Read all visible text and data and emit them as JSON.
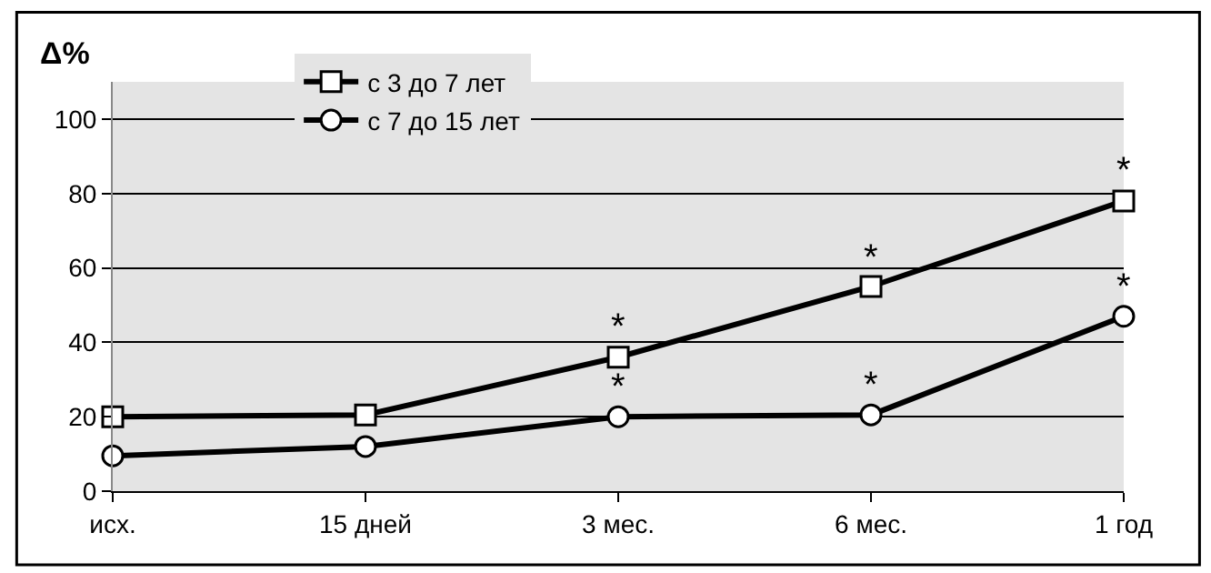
{
  "chart_data": {
    "type": "line",
    "ylabel": "Δ%",
    "categories": [
      "исх.",
      "15 дней",
      "3 мес.",
      "6 мес.",
      "1 год"
    ],
    "series": [
      {
        "name": "с 3 до 7 лет",
        "color": "#000000",
        "marker": "square",
        "values": [
          20,
          20.5,
          36,
          55,
          78
        ]
      },
      {
        "name": "с 7 до 15 лет",
        "color": "#000000",
        "marker": "circle",
        "values": [
          9.5,
          12,
          20,
          20.5,
          47
        ]
      }
    ],
    "ylim": [
      0,
      110
    ],
    "yticks": [
      0,
      20,
      40,
      60,
      80,
      100
    ],
    "grid": "y",
    "legend": "top",
    "line_style": "solid",
    "annotations": [
      {
        "text": "*",
        "x": "3 мес.",
        "y": 36
      },
      {
        "text": "*",
        "x": "6 мес.",
        "y": 55
      },
      {
        "text": "*",
        "x": "1 год",
        "y": 78
      },
      {
        "text": "*",
        "x": "3 мес.",
        "y": 20
      },
      {
        "text": "*",
        "x": "6 мес.",
        "y": 20.5
      },
      {
        "text": "*",
        "x": "1 год",
        "y": 47
      }
    ]
  }
}
